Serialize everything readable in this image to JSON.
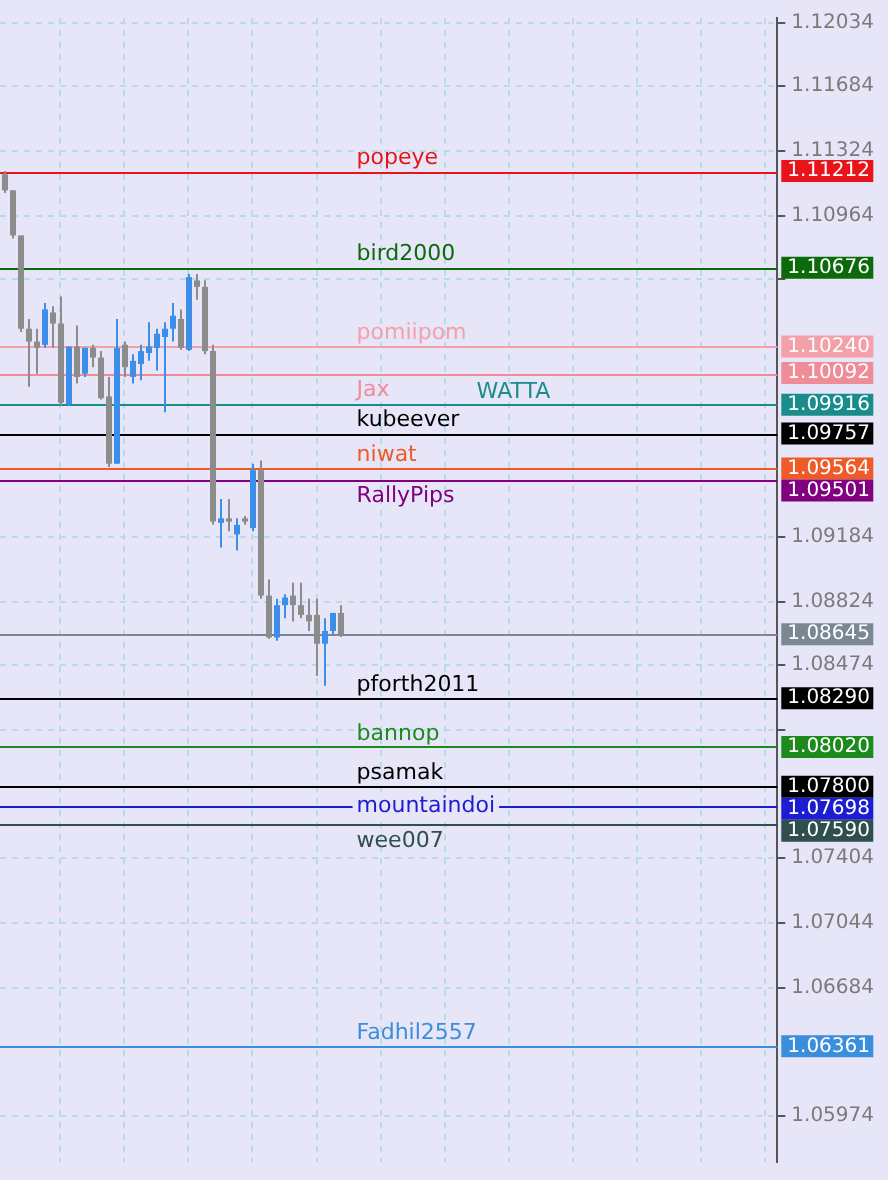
{
  "chart_data": {
    "type": "candlestick",
    "categories": [
      null,
      null,
      null,
      null,
      null,
      null,
      null,
      null,
      null,
      null,
      null,
      null,
      null,
      null,
      null,
      null,
      null,
      null,
      null,
      null,
      null,
      null,
      null,
      null,
      null,
      null,
      null,
      null,
      null,
      null,
      null,
      null,
      null,
      null,
      null,
      null,
      null,
      null,
      null,
      null,
      null,
      null,
      null,
      null,
      null,
      null,
      null,
      null,
      null,
      null,
      null,
      null,
      null,
      null,
      null,
      null,
      null,
      null,
      null,
      null,
      null,
      null,
      null,
      null,
      null,
      null,
      null,
      null,
      null,
      null,
      null,
      null,
      null,
      null,
      null,
      null,
      null,
      null,
      null,
      null,
      null,
      null,
      null,
      null,
      null,
      null,
      null,
      null,
      null,
      null,
      null,
      null,
      null,
      null,
      null,
      null,
      null
    ],
    "ohlc": [
      [
        1.11194,
        1.11212,
        1.1109,
        1.11105
      ],
      [
        1.11105,
        1.11105,
        1.10838,
        1.10855
      ],
      [
        1.10855,
        1.10855,
        1.1032,
        1.10338
      ],
      [
        1.10338,
        1.10392,
        1.10017,
        1.10267
      ],
      [
        1.10267,
        1.10338,
        1.10089,
        1.10232
      ],
      [
        1.10249,
        1.10481,
        1.10232,
        1.10445
      ],
      [
        1.10428,
        1.10463,
        1.10232,
        1.10367
      ],
      [
        1.10367,
        1.10517,
        1.09911,
        1.09928
      ],
      [
        1.09918,
        1.10239,
        1.09911,
        1.10239
      ],
      [
        1.10239,
        1.10356,
        1.10035,
        1.10071
      ],
      [
        1.10089,
        1.10232,
        1.10071,
        1.10232
      ],
      [
        1.10232,
        1.10249,
        1.10125,
        1.10178
      ],
      [
        1.10178,
        1.10214,
        1.09946,
        1.09953
      ],
      [
        1.09963,
        1.10071,
        1.09572,
        1.0959
      ],
      [
        1.0959,
        1.10392,
        1.0959,
        1.10232
      ],
      [
        1.10249,
        1.10267,
        1.10071,
        1.10125
      ],
      [
        1.10071,
        1.10196,
        1.10035,
        1.1016
      ],
      [
        1.10142,
        1.10249,
        1.10053,
        1.10214
      ],
      [
        1.10203,
        1.10374,
        1.1016,
        1.10239
      ],
      [
        1.10232,
        1.10338,
        1.10107,
        1.1031
      ],
      [
        1.10292,
        1.10374,
        1.09875,
        1.10338
      ],
      [
        1.10338,
        1.10481,
        1.10267,
        1.1041
      ],
      [
        1.10392,
        1.10445,
        1.10221,
        1.10232
      ],
      [
        1.10221,
        1.10641,
        1.10214,
        1.10624
      ],
      [
        1.10606,
        1.10641,
        1.10499,
        1.1057
      ],
      [
        1.1057,
        1.10606,
        1.10196,
        1.10214
      ],
      [
        1.10214,
        1.10249,
        1.09251,
        1.09269
      ],
      [
        1.09262,
        1.09394,
        1.09126,
        1.09287
      ],
      [
        1.09287,
        1.09394,
        1.09215,
        1.09269
      ],
      [
        1.09198,
        1.09287,
        1.09109,
        1.09251
      ],
      [
        1.09287,
        1.093,
        1.09251,
        1.09269
      ],
      [
        1.09233,
        1.0959,
        1.09215,
        1.09554
      ],
      [
        1.09554,
        1.09608,
        1.08841,
        1.08859
      ],
      [
        1.08859,
        1.08948,
        1.0862,
        1.08627
      ],
      [
        1.08627,
        1.08841,
        1.08609,
        1.08806
      ],
      [
        1.08806,
        1.08866,
        1.08734,
        1.08848
      ],
      [
        1.08859,
        1.0893,
        1.08716,
        1.08806
      ],
      [
        1.08806,
        1.0893,
        1.08734,
        1.08752
      ],
      [
        1.08752,
        1.08841,
        1.08663,
        1.08716
      ],
      [
        1.08752,
        1.08841,
        1.08413,
        1.08592
      ],
      [
        1.08592,
        1.08734,
        1.0836,
        1.08663
      ],
      [
        1.08663,
        1.08763,
        1.08645,
        1.08763
      ],
      [
        1.08763,
        1.08806,
        1.0863,
        1.08645
      ],
      null,
      null,
      null,
      null,
      null,
      null,
      null,
      null,
      null,
      null,
      null,
      null,
      null,
      null,
      null,
      null,
      null,
      null,
      null,
      null,
      null,
      null,
      null,
      null,
      null,
      null,
      null,
      null,
      null,
      null,
      null,
      null,
      null,
      null,
      null,
      null,
      null,
      null,
      null,
      null,
      null,
      null,
      null,
      null,
      null,
      null,
      null,
      null,
      null,
      null,
      null,
      null,
      null,
      null
    ],
    "colors": [
      "#8c8c8c",
      "#8c8c8c",
      "#8c8c8c",
      "#8c8c8c",
      "#8c8c8c",
      "#3c8ee8",
      "#8c8c8c",
      "#8c8c8c",
      "#3c8ee8",
      "#8c8c8c",
      "#3c8ee8",
      "#8c8c8c",
      "#8c8c8c",
      "#8c8c8c",
      "#3c8ee8",
      "#8c8c8c",
      "#3c8ee8",
      "#3c8ee8",
      "#3c8ee8",
      "#3c8ee8",
      "#3c8ee8",
      "#3c8ee8",
      "#8c8c8c",
      "#3c8ee8",
      "#8c8c8c",
      "#8c8c8c",
      "#8c8c8c",
      "#3c8ee8",
      "#8c8c8c",
      "#3c8ee8",
      "#8c8c8c",
      "#3c8ee8",
      "#8c8c8c",
      "#8c8c8c",
      "#3c8ee8",
      "#3c8ee8",
      "#8c8c8c",
      "#8c8c8c",
      "#8c8c8c",
      "#8c8c8c",
      "#3c8ee8",
      "#3c8ee8",
      "#8c8c8c",
      null,
      null,
      null,
      null,
      null,
      null,
      null,
      null,
      null,
      null,
      null,
      null,
      null,
      null,
      null,
      null,
      null,
      null,
      null,
      null,
      null,
      null,
      null,
      null,
      null,
      null,
      null,
      null,
      null,
      null,
      null,
      null,
      null,
      null,
      null,
      null,
      null,
      null,
      null,
      null,
      null,
      null,
      null,
      null,
      null,
      null,
      null,
      null,
      null,
      null,
      null,
      null,
      null,
      null
    ],
    "ylim": [
      1.0572,
      1.1206
    ],
    "yticks": [
      1.12034,
      1.11684,
      1.11324,
      1.11212,
      1.10964,
      1.10676,
      {
        "value": 1.10614,
        "label": null
      },
      {
        "value": 1.1024,
        "label": "1.10240"
      },
      1.10092,
      1.09916,
      1.09757,
      1.09564,
      1.09501,
      1.09184,
      1.08824,
      1.08645,
      1.08474,
      {
        "value": 1.0829,
        "label": "1.08290"
      },
      {
        "value": 1.08114,
        "label": null
      },
      {
        "value": 1.0802,
        "label": "1.08020"
      },
      {
        "value": 1.078,
        "label": "1.07800"
      },
      1.07698,
      {
        "value": 1.0759,
        "label": "1.07590"
      },
      1.07404,
      1.07044,
      1.06684,
      1.06361,
      1.05974
    ],
    "grid": true,
    "ref_lines": [
      {
        "axis": "y",
        "value": 1.11212,
        "label": "popeye",
        "color": "#e8141a"
      },
      {
        "axis": "y",
        "value": 1.10676,
        "label": "bird2000",
        "color": "#0b6b0b"
      },
      {
        "axis": "y",
        "value": 1.1024,
        "label": "pomiipom",
        "color": "#f4a0a8"
      },
      {
        "axis": "y",
        "value": 1.10092,
        "label": "Jax",
        "color": "#f08c98"
      },
      {
        "axis": "y",
        "value": 1.09916,
        "label": "WATTA",
        "color": "#1a8c8c"
      },
      {
        "axis": "y",
        "value": 1.09757,
        "label": "kubeever",
        "color": "#000000"
      },
      {
        "axis": "y",
        "value": 1.09564,
        "label": "niwat",
        "color": "#f05a28"
      },
      {
        "axis": "y",
        "value": 1.09501,
        "label": "RallyPips",
        "color": "#800080"
      },
      {
        "axis": "y",
        "value": 1.08645,
        "label": null,
        "color": "#7a8894"
      },
      {
        "axis": "y",
        "value": 1.0829,
        "label": "pforth2011",
        "color": "#000000"
      },
      {
        "axis": "y",
        "value": 1.0802,
        "label": "bannop",
        "color": "#1e8a1e"
      },
      {
        "axis": "y",
        "value": 1.078,
        "label": "psamak",
        "color": "#000000"
      },
      {
        "axis": "y",
        "value": 1.07698,
        "label": "mountaindoi",
        "color": "#1c1cd0"
      },
      {
        "axis": "y",
        "value": 1.0759,
        "label": "wee007",
        "color": "#2f4f4f"
      },
      {
        "axis": "y",
        "value": 1.06361,
        "label": "Fadhil2557",
        "color": "#3a8edc"
      }
    ]
  }
}
